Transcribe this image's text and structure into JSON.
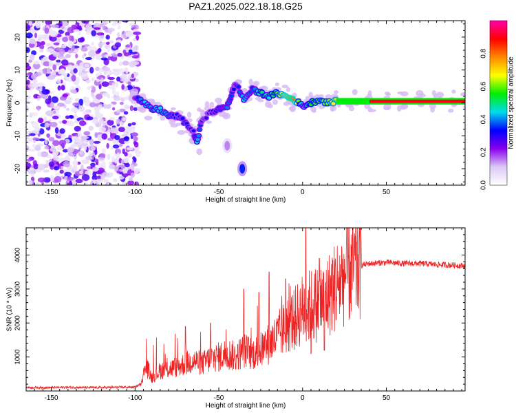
{
  "title": "PAZ1.2025.022.18.18.G25",
  "chart_data": [
    {
      "type": "heatmap",
      "xlabel": "Height of straight line (km)",
      "ylabel": "Frequency (Hz)",
      "xlim": [
        -165,
        97
      ],
      "ylim": [
        -25,
        25
      ],
      "xticks": [
        -150,
        -100,
        -50,
        0,
        50
      ],
      "yticks": [
        -20,
        -10,
        0,
        10,
        20
      ],
      "colorbar": {
        "label": "Normalized spectral amplitude",
        "range": [
          0,
          1
        ],
        "ticks": [
          0.0,
          0.2,
          0.4,
          0.6,
          0.8
        ],
        "tick_labels": [
          "0.0",
          "0.2",
          "0.4",
          "0.6",
          "0.8"
        ],
        "colormap": [
          "#ffffff",
          "#dcc8f5",
          "#8800ee",
          "#0000ff",
          "#00ddee",
          "#00ee00",
          "#ffff00",
          "#ff8800",
          "#ff0000",
          "#ff00aa"
        ]
      },
      "noise_region": {
        "x": [
          -165,
          -98
        ],
        "y": [
          -25,
          25
        ],
        "typical_amplitude": 0.15
      },
      "signal_trace": [
        {
          "x": -100,
          "y": 2,
          "amp": 0.3
        },
        {
          "x": -95,
          "y": 0,
          "amp": 0.45
        },
        {
          "x": -90,
          "y": -2,
          "amp": 0.4
        },
        {
          "x": -85,
          "y": -2,
          "amp": 0.45
        },
        {
          "x": -80,
          "y": -4,
          "amp": 0.4
        },
        {
          "x": -75,
          "y": -4,
          "amp": 0.3
        },
        {
          "x": -70,
          "y": -6,
          "amp": 0.35
        },
        {
          "x": -65,
          "y": -9,
          "amp": 0.3
        },
        {
          "x": -63,
          "y": -12,
          "amp": 0.45
        },
        {
          "x": -60,
          "y": -5,
          "amp": 0.3
        },
        {
          "x": -55,
          "y": -3,
          "amp": 0.3
        },
        {
          "x": -50,
          "y": -2,
          "amp": 0.35
        },
        {
          "x": -45,
          "y": -1,
          "amp": 0.4
        },
        {
          "x": -42,
          "y": 3,
          "amp": 0.35
        },
        {
          "x": -40,
          "y": 6,
          "amp": 0.3
        },
        {
          "x": -35,
          "y": 1,
          "amp": 0.45
        },
        {
          "x": -30,
          "y": 4,
          "amp": 0.35
        },
        {
          "x": -25,
          "y": 3,
          "amp": 0.5
        },
        {
          "x": -20,
          "y": 2,
          "amp": 0.45
        },
        {
          "x": -15,
          "y": 3,
          "amp": 0.6
        },
        {
          "x": -10,
          "y": 2,
          "amp": 0.75
        },
        {
          "x": -5,
          "y": 1,
          "amp": 0.8
        },
        {
          "x": 0,
          "y": -1,
          "amp": 0.4
        },
        {
          "x": 5,
          "y": 0,
          "amp": 0.55
        },
        {
          "x": 10,
          "y": 1,
          "amp": 0.6
        },
        {
          "x": 15,
          "y": 0,
          "amp": 0.6
        },
        {
          "x": 20,
          "y": 0.5,
          "amp": 0.7
        },
        {
          "x": 30,
          "y": 0.5,
          "amp": 0.75
        },
        {
          "x": 40,
          "y": 0.5,
          "amp": 0.8
        },
        {
          "x": 50,
          "y": 0.5,
          "amp": 0.85
        },
        {
          "x": 60,
          "y": 0.5,
          "amp": 0.9
        },
        {
          "x": 70,
          "y": 0.5,
          "amp": 0.95
        },
        {
          "x": 80,
          "y": 0.5,
          "amp": 1.0
        },
        {
          "x": 90,
          "y": 0.5,
          "amp": 1.0
        },
        {
          "x": 97,
          "y": 0.5,
          "amp": 1.0
        }
      ],
      "isolated_features": [
        {
          "x": -36,
          "y": -20,
          "amp": 0.35
        },
        {
          "x": -45,
          "y": -13,
          "amp": 0.15
        }
      ]
    },
    {
      "type": "line",
      "xlabel": "Height of straight line (km)",
      "ylabel": "SNR (10 * v/v)",
      "xlim": [
        -165,
        97
      ],
      "ylim": [
        0,
        4800
      ],
      "xticks": [
        -150,
        -100,
        -50,
        0,
        50
      ],
      "yticks": [
        1000,
        2000,
        3000,
        4000
      ],
      "color": "#ee2222",
      "series": [
        {
          "x": [
            -165,
            -150,
            -140,
            -130,
            -120,
            -110,
            -100,
            -97,
            -95,
            -93,
            -90,
            -85,
            -80,
            -75,
            -70,
            -65,
            -60,
            -55,
            -50,
            -45,
            -40,
            -35,
            -30,
            -25,
            -20,
            -15,
            -10,
            -5,
            0,
            5,
            10,
            15,
            20,
            25,
            30,
            35,
            40,
            50,
            60,
            70,
            80,
            90,
            97
          ],
          "values": [
            100,
            100,
            110,
            100,
            100,
            110,
            110,
            200,
            500,
            700,
            400,
            600,
            650,
            700,
            800,
            900,
            800,
            950,
            1000,
            1100,
            1000,
            1200,
            1100,
            1200,
            1400,
            1600,
            1900,
            2100,
            2400,
            2500,
            2600,
            2800,
            3100,
            3400,
            3600,
            3700,
            3750,
            3780,
            3750,
            3750,
            3720,
            3700,
            3680
          ]
        }
      ],
      "spikes": [
        {
          "x": 2,
          "value": 4800
        },
        {
          "x": 5,
          "value": 1100
        },
        {
          "x": -20,
          "value": 3500
        },
        {
          "x": -35,
          "value": 3000
        },
        {
          "x": -55,
          "value": 2000
        },
        {
          "x": -70,
          "value": 1900
        },
        {
          "x": -10,
          "value": 3300
        },
        {
          "x": 10,
          "value": 3900
        },
        {
          "x": 13,
          "value": 1200
        },
        {
          "x": -26,
          "value": 2900
        }
      ]
    }
  ]
}
